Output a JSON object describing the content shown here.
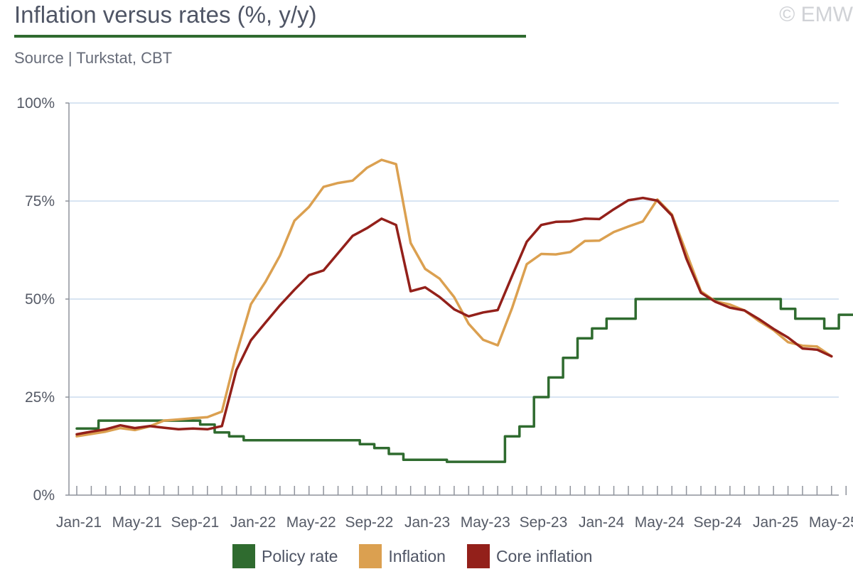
{
  "header": {
    "title": "Inflation versus rates (%, y/y)",
    "source": "Source | Turkstat, CBT",
    "copyright": "© EMW"
  },
  "colors": {
    "title_rule": "#2f6b2f",
    "axis": "#8f939c",
    "grid": "#ccdcee",
    "text": "#555a66"
  },
  "chart_data": {
    "type": "line",
    "title": "Inflation versus rates (%, y/y)",
    "xlabel": "",
    "ylabel": "",
    "x_ticks": [
      "Jan-21",
      "May-21",
      "Sep-21",
      "Jan-22",
      "May-22",
      "Sep-22",
      "Jan-23",
      "May-23",
      "Sep-23",
      "Jan-24",
      "May-24",
      "Sep-24",
      "Jan-25",
      "May-25"
    ],
    "y_ticks": [
      "0%",
      "25%",
      "50%",
      "75%",
      "100%"
    ],
    "ylim": [
      0,
      100
    ],
    "start_month": "Jan-21",
    "grid": true,
    "legend_position": "bottom",
    "series": [
      {
        "name": "Policy rate",
        "color": "#2f6b2f",
        "style": "step",
        "values": [
          17,
          17,
          19,
          19,
          19,
          19,
          19,
          19,
          19,
          18,
          16,
          15,
          14,
          14,
          14,
          14,
          14,
          14,
          14,
          14,
          13,
          12,
          10.5,
          9,
          9,
          9,
          8.5,
          8.5,
          8.5,
          8.5,
          15,
          17.5,
          25,
          30,
          35,
          40,
          42.5,
          45,
          45,
          50,
          50,
          50,
          50,
          50,
          50,
          50,
          50,
          50,
          50,
          47.5,
          45,
          45,
          42.5,
          46,
          46
        ]
      },
      {
        "name": "Inflation",
        "color": "#dba050",
        "style": "line",
        "values": [
          15,
          15.6,
          16.2,
          17.1,
          16.6,
          17.5,
          19,
          19.3,
          19.6,
          19.9,
          21.3,
          36.1,
          48.7,
          54.4,
          61.1,
          70,
          73.5,
          78.6,
          79.6,
          80.2,
          83.5,
          85.5,
          84.4,
          64.3,
          57.7,
          55.2,
          50.5,
          43.7,
          39.6,
          38.2,
          47.8,
          58.9,
          61.5,
          61.4,
          62,
          64.8,
          64.9,
          67.1,
          68.5,
          69.8,
          75.4,
          71.6,
          61.8,
          51.97,
          49.4,
          48.6,
          47.1,
          44.4,
          42.1,
          39,
          38.1,
          37.9,
          35.4
        ]
      },
      {
        "name": "Core inflation",
        "color": "#93201a",
        "style": "line",
        "values": [
          15.5,
          16.2,
          16.8,
          17.8,
          17.1,
          17.6,
          17.2,
          16.8,
          17,
          16.8,
          17.6,
          31.9,
          39.5,
          44,
          48.4,
          52.4,
          56.1,
          57.3,
          61.7,
          66.1,
          68.1,
          70.5,
          68.9,
          52,
          53,
          50.5,
          47.4,
          45.6,
          46.6,
          47.2,
          56,
          64.6,
          68.9,
          69.7,
          69.8,
          70.5,
          70.4,
          72.9,
          75.2,
          75.8,
          75.1,
          71.3,
          60.3,
          51.6,
          49.3,
          47.8,
          47.1,
          44.9,
          42.4,
          40.2,
          37.4,
          37.1,
          35.4
        ]
      }
    ]
  }
}
